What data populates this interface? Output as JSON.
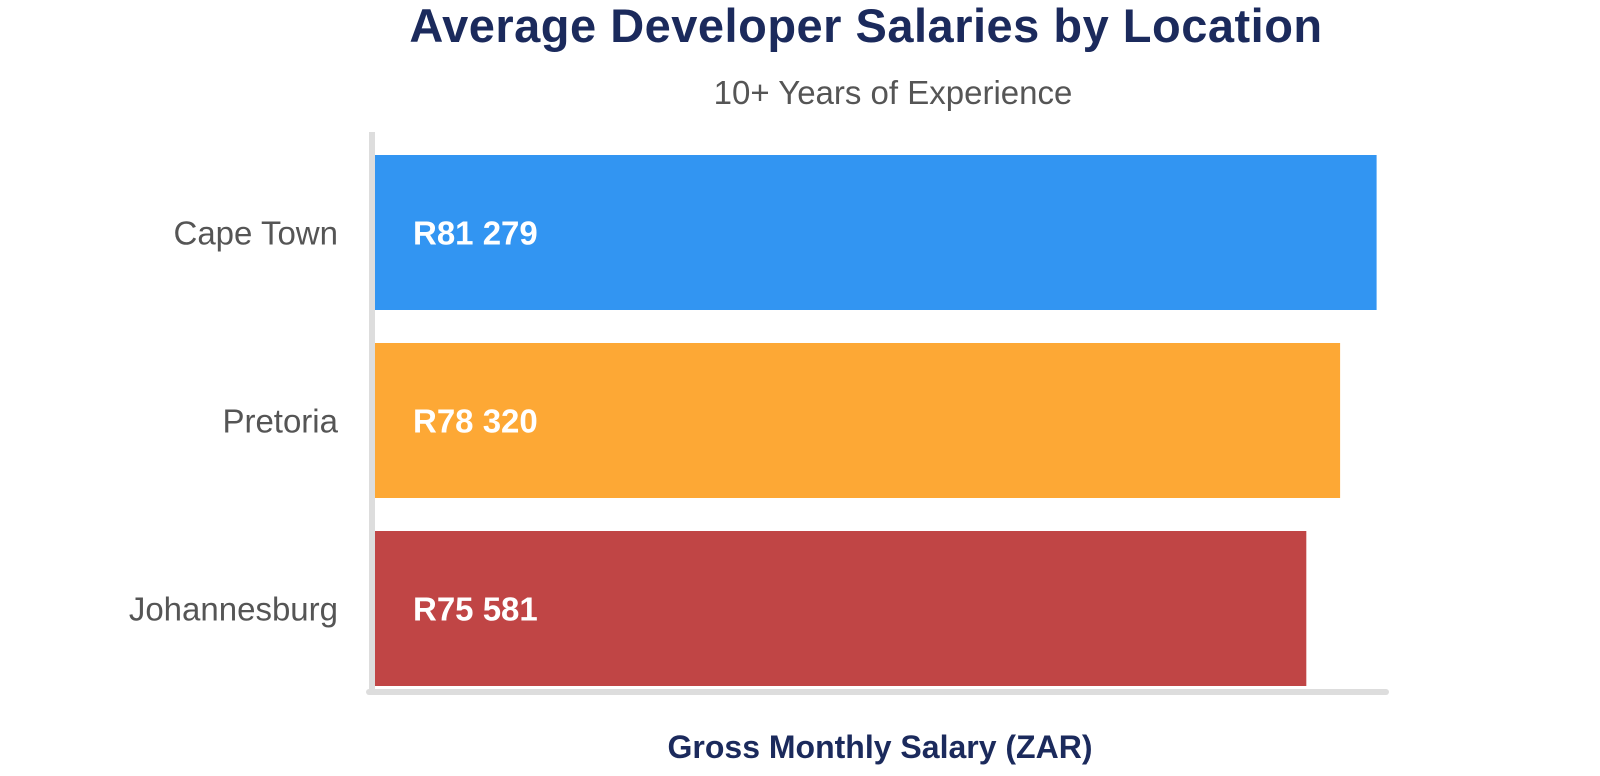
{
  "chart_data": {
    "type": "bar",
    "orientation": "horizontal",
    "title": "Average Developer Salaries by Location",
    "subtitle": "10+ Years of Experience",
    "xlabel": "Gross Monthly Salary (ZAR)",
    "ylabel": "",
    "xlim": [
      0,
      83500
    ],
    "grid": false,
    "categories": [
      "Cape Town",
      "Pretoria",
      "Johannesburg"
    ],
    "values": [
      81279,
      78320,
      75581
    ],
    "value_labels": [
      "R81 279",
      "R78 320",
      "R75 581"
    ],
    "colors": [
      "#3295F2",
      "#FDA835",
      "#C04545"
    ]
  },
  "colors": {
    "title": "#1B2A5C",
    "subtitle": "#555555",
    "category_label": "#555555",
    "bar_label": "#FFFFFF",
    "axis_line": "#DDDDDD",
    "xaxis_title": "#1B2A5C"
  }
}
